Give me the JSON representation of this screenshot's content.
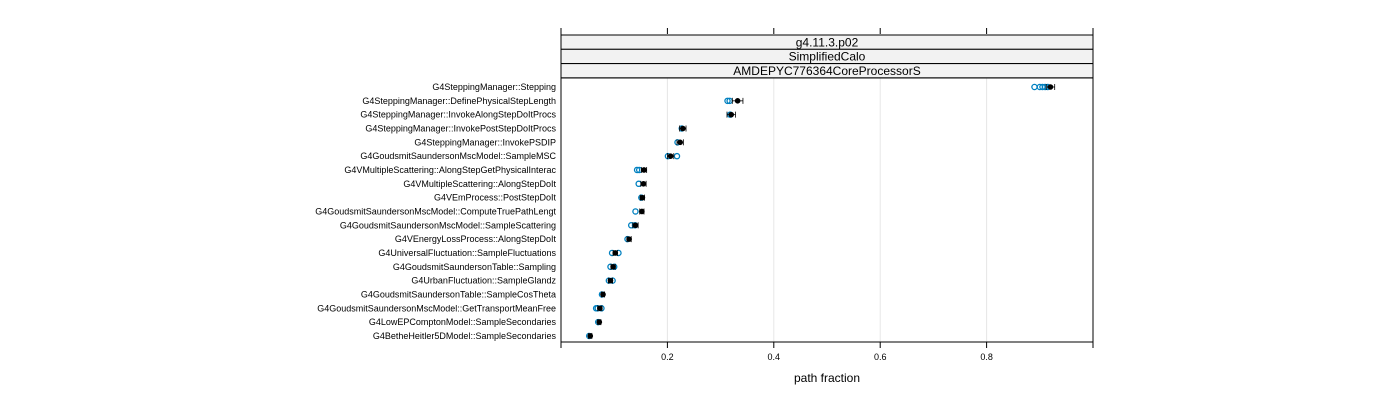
{
  "chart_data": {
    "type": "dotplot",
    "strips": [
      "g4.11.3.p02",
      "SimplifiedCalo",
      "AMDEPYC776364CoreProcessorS"
    ],
    "xlabel": "path fraction",
    "xlim": [
      0,
      1.0
    ],
    "xticks": [
      0.2,
      0.4,
      0.6,
      0.8
    ],
    "xtick_labels": [
      "0.2",
      "0.4",
      "0.6",
      "0.8"
    ],
    "grid": true,
    "categories": [
      "G4SteppingManager::Stepping",
      "G4SteppingManager::DefinePhysicalStepLength",
      "G4SteppingManager::InvokeAlongStepDoItProcs",
      "G4SteppingManager::InvokePostStepDoItProcs",
      "G4SteppingManager::InvokePSDIP",
      "G4GoudsmitSaundersonMscModel::SampleMSC",
      "G4VMultipleScattering::AlongStepGetPhysicalInterac",
      "G4VMultipleScattering::AlongStepDoIt",
      "G4VEmProcess::PostStepDoIt",
      "G4GoudsmitSaundersonMscModel::ComputeTruePathLengt",
      "G4GoudsmitSaundersonMscModel::SampleScattering",
      "G4VEnergyLossProcess::AlongStepDoIt",
      "G4UniversalFluctuation::SampleFluctuations",
      "G4GoudsmitSaundersonTable::Sampling",
      "G4UrbanFluctuation::SampleGlandz",
      "G4GoudsmitSaundersonTable::SampleCosTheta",
      "G4GoudsmitSaundersonMscModel::GetTransportMeanFree",
      "G4LowEPComptonModel::SampleSecondaries",
      "G4BetheHeitler5DModel::SampleSecondaries"
    ],
    "series": [
      {
        "values": [
          0.92,
          0.332,
          0.32,
          0.229,
          0.224,
          0.206,
          0.156,
          0.155,
          0.153,
          0.152,
          0.14,
          0.128,
          0.102,
          0.098,
          0.093,
          0.079,
          0.073,
          0.072,
          0.055
        ],
        "errors": [
          0.008,
          0.01,
          0.008,
          0.006,
          0.006,
          0.006,
          0.005,
          0.005,
          0.004,
          0.004,
          0.005,
          0.004,
          0.004,
          0.004,
          0.004,
          0.003,
          0.004,
          0.003,
          0.003
        ]
      },
      {
        "values": [
          [
            0.89,
            0.9,
            0.905,
            0.91,
            0.915
          ],
          [
            0.313,
            0.317
          ],
          [
            0.318
          ],
          [
            0.227
          ],
          [
            0.219
          ],
          [
            0.201,
            0.218
          ],
          [
            0.143,
            0.147
          ],
          [
            0.146
          ],
          [
            0.151
          ],
          [
            0.14
          ],
          [
            0.132,
            0.139
          ],
          [
            0.125
          ],
          [
            0.096,
            0.108
          ],
          [
            0.093,
            0.1
          ],
          [
            0.09,
            0.097
          ],
          [
            0.077
          ],
          [
            0.066,
            0.069,
            0.076
          ],
          [
            0.07
          ],
          [
            0.053
          ]
        ]
      }
    ],
    "colors": {
      "mean_marker": "#000000",
      "sample_marker": "#0080c0",
      "strip_bg": "#f2f2f2",
      "grid": "#e6e6e6"
    }
  }
}
